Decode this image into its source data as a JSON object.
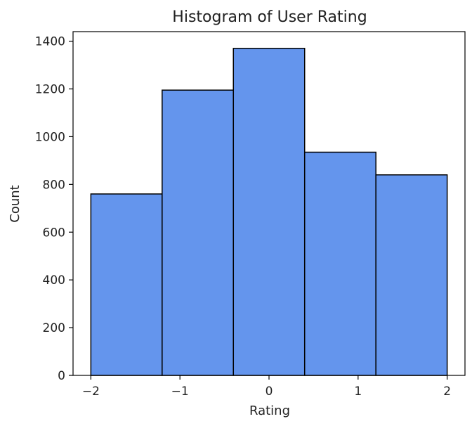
{
  "chart_data": {
    "type": "bar",
    "title": "Histogram of User Rating",
    "xlabel": "Rating",
    "ylabel": "Count",
    "bins": [
      {
        "x_start": -2.0,
        "x_end": -1.2,
        "count": 760
      },
      {
        "x_start": -1.2,
        "x_end": -0.4,
        "count": 1195
      },
      {
        "x_start": -0.4,
        "x_end": 0.4,
        "count": 1370
      },
      {
        "x_start": 0.4,
        "x_end": 1.2,
        "count": 935
      },
      {
        "x_start": 1.2,
        "x_end": 2.0,
        "count": 840
      }
    ],
    "values": [
      760,
      1195,
      1370,
      935,
      840
    ],
    "xlim": [
      -2.2,
      2.2
    ],
    "ylim": [
      0,
      1440
    ],
    "xticks": [
      -2,
      -1,
      0,
      1,
      2
    ],
    "xtick_labels": [
      "−2",
      "−1",
      "0",
      "1",
      "2"
    ],
    "yticks": [
      0,
      200,
      400,
      600,
      800,
      1000,
      1200,
      1400
    ],
    "ytick_labels": [
      "0",
      "200",
      "400",
      "600",
      "800",
      "1000",
      "1200",
      "1400"
    ],
    "grid": false,
    "colors": {
      "bar_fill": "#6495ED",
      "bar_edge": "#000000",
      "axis": "#000000"
    }
  }
}
